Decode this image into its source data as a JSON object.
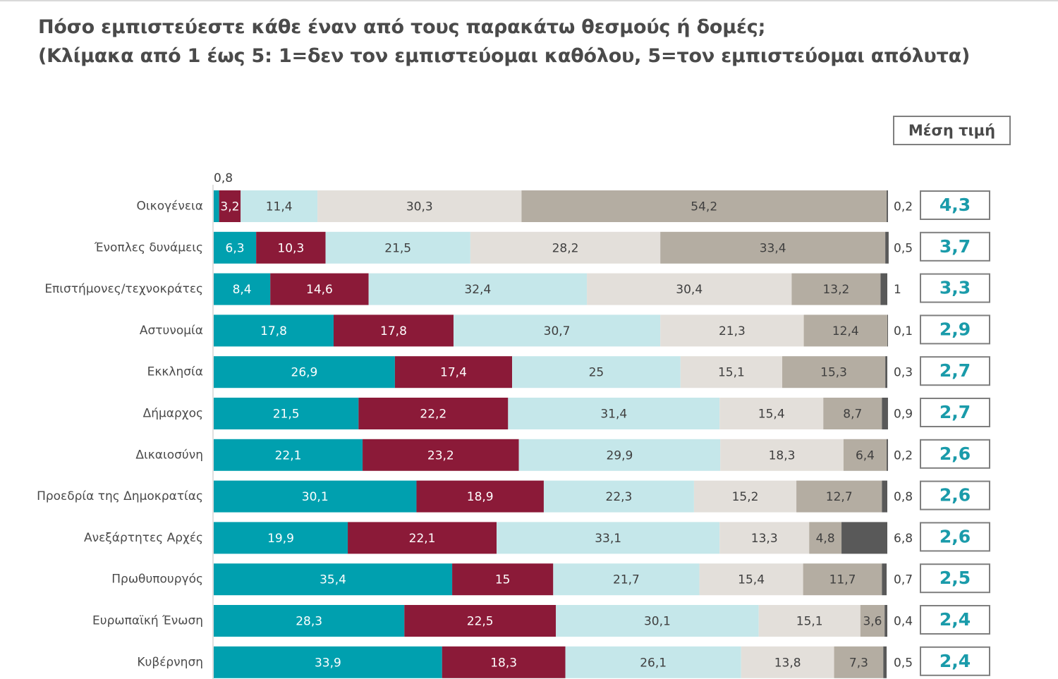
{
  "title": {
    "line1": "Πόσο εμπιστεύεστε κάθε έναν από τους παρακάτω θεσμούς ή δομές;",
    "line2": "(Κλίμακα από 1 έως 5: 1=δεν τον εμπιστεύομαι καθόλου, 5=τον εμπιστεύομαι απόλυτα)"
  },
  "mean_header": "Μέση τιμή",
  "colors": {
    "s1": "#00A0AF",
    "s2": "#8B1A38",
    "s3": "#C5E7EA",
    "s4": "#E3DFDA",
    "s5": "#B4ADA2",
    "dk": "#595959",
    "mean_text": "#1A9BAA",
    "mean_border": "#7F7F7F"
  },
  "chart_data": {
    "type": "bar",
    "orientation": "horizontal",
    "stacked": true,
    "categories": [
      "Οικογένεια",
      "Ένοπλες δυνάμεις",
      "Επιστήμονες/τεχνοκράτες",
      "Αστυνομία",
      "Εκκλησία",
      "Δήμαρχος",
      "Δικαιοσύνη",
      "Προεδρία της Δημοκρατίας",
      "Ανεξάρτητες Αρχές",
      "Πρωθυπουργός",
      "Ευρωπαϊκή Ένωση",
      "Κυβέρνηση"
    ],
    "series": [
      {
        "values": [
          0.8,
          6.3,
          8.4,
          17.8,
          26.9,
          21.5,
          22.1,
          30.1,
          19.9,
          35.4,
          28.3,
          33.9
        ]
      },
      {
        "values": [
          3.2,
          10.3,
          14.6,
          17.8,
          17.4,
          22.2,
          23.2,
          18.9,
          22.1,
          15,
          22.5,
          18.3
        ]
      },
      {
        "values": [
          11.4,
          21.5,
          32.4,
          30.7,
          25,
          31.4,
          29.9,
          22.3,
          33.1,
          21.7,
          30.1,
          26.1
        ]
      },
      {
        "values": [
          30.3,
          28.2,
          30.4,
          21.3,
          15.1,
          15.4,
          18.3,
          15.2,
          13.3,
          15.4,
          15.1,
          13.8
        ]
      },
      {
        "values": [
          54.2,
          33.4,
          13.2,
          12.4,
          15.3,
          8.7,
          6.4,
          12.7,
          4.8,
          11.7,
          3.6,
          7.3
        ]
      },
      {
        "values": [
          0.2,
          0.5,
          1,
          0.1,
          0.3,
          0.9,
          0.2,
          0.8,
          6.8,
          0.7,
          0.4,
          0.5
        ]
      }
    ],
    "labels": [
      [
        "0,8",
        "3,2",
        "11,4",
        "30,3",
        "54,2",
        "0,2"
      ],
      [
        "6,3",
        "10,3",
        "21,5",
        "28,2",
        "33,4",
        "0,5"
      ],
      [
        "8,4",
        "14,6",
        "32,4",
        "30,4",
        "13,2",
        "1"
      ],
      [
        "17,8",
        "17,8",
        "30,7",
        "21,3",
        "12,4",
        "0,1"
      ],
      [
        "26,9",
        "17,4",
        "25",
        "15,1",
        "15,3",
        "0,3"
      ],
      [
        "21,5",
        "22,2",
        "31,4",
        "15,4",
        "8,7",
        "0,9"
      ],
      [
        "22,1",
        "23,2",
        "29,9",
        "18,3",
        "6,4",
        "0,2"
      ],
      [
        "30,1",
        "18,9",
        "22,3",
        "15,2",
        "12,7",
        "0,8"
      ],
      [
        "19,9",
        "22,1",
        "33,1",
        "13,3",
        "4,8",
        "6,8"
      ],
      [
        "35,4",
        "15",
        "21,7",
        "15,4",
        "11,7",
        "0,7"
      ],
      [
        "28,3",
        "22,5",
        "30,1",
        "15,1",
        "3,6",
        "0,4"
      ],
      [
        "33,9",
        "18,3",
        "26,1",
        "13,8",
        "7,3",
        "0,5"
      ]
    ],
    "means": [
      "4,3",
      "3,7",
      "3,3",
      "2,9",
      "2,7",
      "2,7",
      "2,6",
      "2,6",
      "2,6",
      "2,5",
      "2,4",
      "2,4"
    ],
    "xlim": [
      0,
      100
    ],
    "grid": false,
    "legend": "none"
  }
}
